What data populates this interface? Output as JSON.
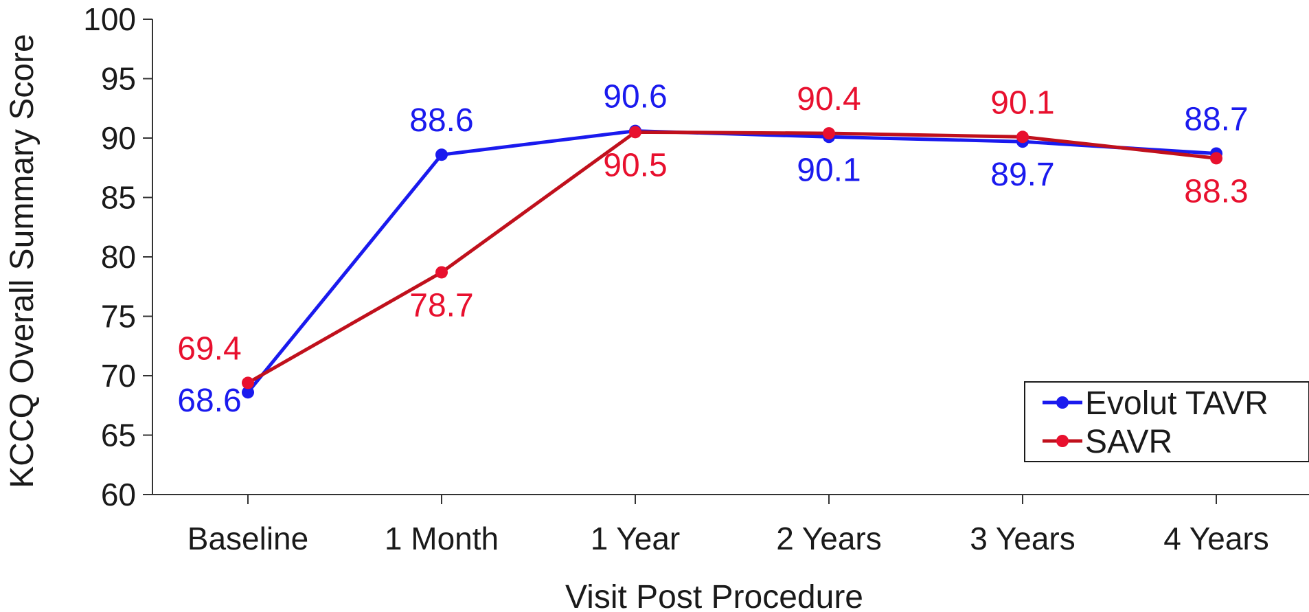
{
  "chart_data": {
    "type": "line",
    "title": "",
    "xlabel": "Visit Post Procedure",
    "ylabel": "KCCQ Overall Summary Score",
    "ylim": [
      60,
      100
    ],
    "yticks": [
      "60",
      "65",
      "70",
      "75",
      "80",
      "85",
      "90",
      "95",
      "100"
    ],
    "categories": [
      "Baseline",
      "1 Month",
      "1 Year",
      "2 Years",
      "3 Years",
      "4 Years"
    ],
    "grid": false,
    "legend_position": "bottom-right",
    "series": [
      {
        "name": "Evolut TAVR",
        "color": "#1a1aee",
        "values": [
          68.6,
          88.6,
          90.6,
          90.1,
          89.7,
          88.7
        ],
        "labels": [
          "68.6",
          "88.6",
          "90.6",
          "90.1",
          "89.7",
          "88.7"
        ]
      },
      {
        "name": "SAVR",
        "color": "#c0101c",
        "marker_color": "#e8102e",
        "values": [
          69.4,
          78.7,
          90.5,
          90.4,
          90.1,
          88.3
        ],
        "labels": [
          "69.4",
          "78.7",
          "90.5",
          "90.4",
          "90.1",
          "88.3"
        ]
      }
    ]
  }
}
